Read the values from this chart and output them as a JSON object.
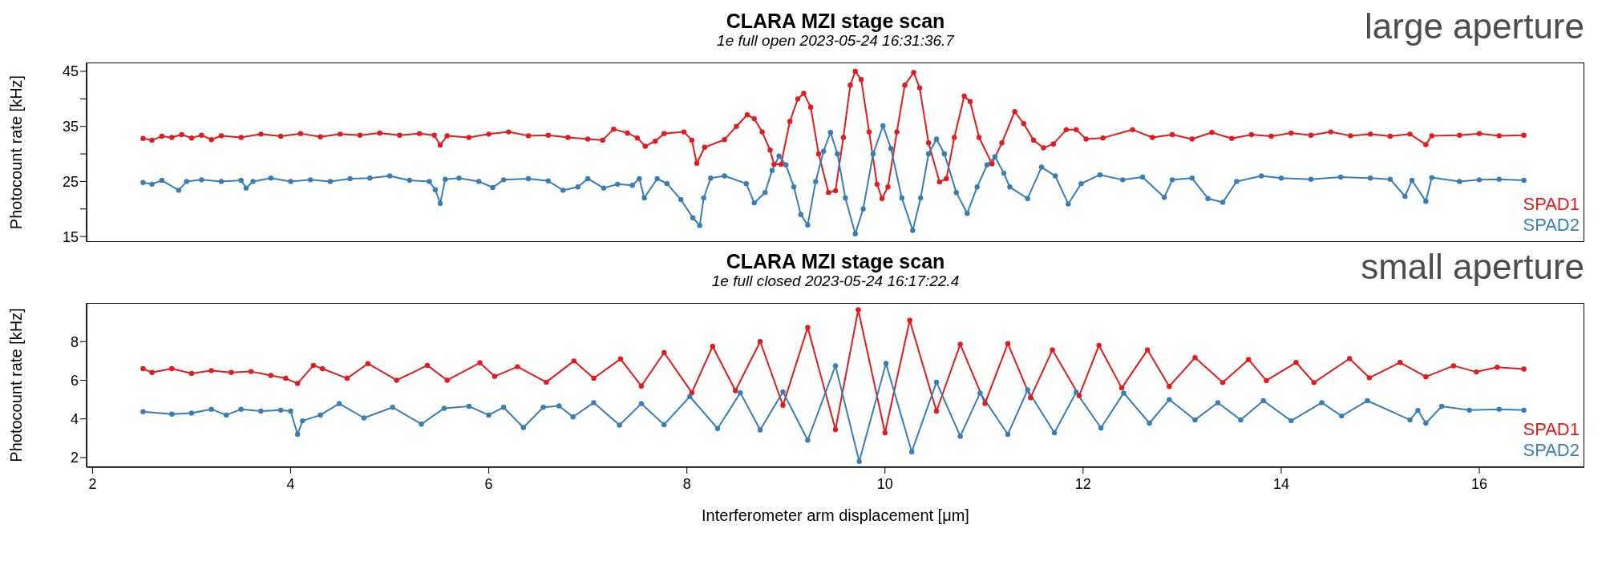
{
  "chart_data": [
    {
      "type": "line",
      "title": "CLARA MZI stage scan",
      "subtitle": "1e full open 2023-05-24 16:31:36.7",
      "ylabel": "Photocount rate [kHz]",
      "annotations": [
        "large aperture"
      ],
      "xlim": [
        1.94,
        17.06
      ],
      "ylim": [
        14,
        46.6
      ],
      "yticks": [
        15,
        {
          "value": 20,
          "label": null
        },
        25,
        {
          "value": 30,
          "label": null
        },
        35,
        {
          "value": 40,
          "label": null
        },
        45
      ],
      "tick_labels": "y",
      "legend": "bottom right",
      "marker": "circle",
      "line_style": "solid",
      "series": [
        {
          "name": "SPAD1",
          "color": "#e41a1c",
          "x": [
            2.51,
            2.6,
            2.7,
            2.8,
            2.9,
            3.0,
            3.1,
            3.2,
            3.3,
            3.5,
            3.7,
            3.9,
            4.1,
            4.3,
            4.5,
            4.7,
            4.9,
            5.1,
            5.3,
            5.45,
            5.51,
            5.58,
            5.8,
            6.0,
            6.2,
            6.4,
            6.6,
            6.8,
            7.0,
            7.15,
            7.26,
            7.4,
            7.5,
            7.58,
            7.68,
            7.77,
            7.97,
            8.05,
            8.1,
            8.18,
            8.38,
            8.5,
            8.61,
            8.68,
            8.76,
            8.84,
            8.88,
            8.95,
            9.04,
            9.12,
            9.18,
            9.25,
            9.33,
            9.43,
            9.5,
            9.58,
            9.65,
            9.7,
            9.76,
            9.84,
            9.92,
            9.97,
            10.03,
            10.12,
            10.2,
            10.29,
            10.35,
            10.44,
            10.55,
            10.62,
            10.7,
            10.8,
            10.86,
            10.95,
            11.08,
            11.18,
            11.31,
            11.4,
            11.5,
            11.6,
            11.7,
            11.83,
            11.93,
            12.03,
            12.2,
            12.5,
            12.7,
            12.9,
            13.1,
            13.3,
            13.5,
            13.7,
            13.9,
            14.1,
            14.3,
            14.5,
            14.7,
            14.9,
            15.1,
            15.3,
            15.46,
            15.52,
            15.8,
            16.0,
            16.2,
            16.45
          ],
          "values": [
            32.8,
            32.5,
            33.2,
            33.0,
            33.5,
            32.9,
            33.4,
            32.6,
            33.3,
            33.0,
            33.6,
            33.2,
            33.7,
            33.1,
            33.6,
            33.4,
            33.8,
            33.4,
            33.7,
            33.4,
            31.6,
            33.3,
            33.0,
            33.6,
            34.0,
            33.3,
            33.4,
            33.0,
            32.7,
            32.5,
            34.5,
            33.8,
            32.9,
            31.4,
            32.3,
            33.7,
            34.0,
            32.5,
            28.3,
            31.2,
            32.6,
            35.0,
            37.1,
            36.4,
            34.0,
            30.7,
            28.1,
            28.1,
            35.9,
            40.0,
            41.0,
            38.5,
            30.0,
            23.0,
            23.3,
            33.0,
            42.5,
            45.0,
            43.5,
            34.0,
            24.5,
            21.9,
            24.0,
            34.0,
            42.5,
            44.8,
            42.0,
            32.0,
            24.9,
            25.5,
            33.0,
            40.5,
            39.5,
            33.0,
            28.2,
            32.0,
            37.7,
            35.5,
            32.5,
            31.1,
            31.8,
            34.4,
            34.4,
            32.7,
            32.9,
            34.4,
            33.0,
            33.5,
            32.7,
            33.9,
            32.8,
            33.5,
            33.2,
            33.8,
            33.4,
            34.0,
            33.3,
            33.6,
            33.2,
            33.6,
            31.7,
            33.3,
            33.4,
            33.7,
            33.3,
            33.4
          ]
        },
        {
          "name": "SPAD2",
          "color": "#377eb8",
          "x": [
            2.51,
            2.6,
            2.7,
            2.87,
            2.95,
            3.1,
            3.3,
            3.5,
            3.55,
            3.62,
            3.8,
            4.0,
            4.2,
            4.4,
            4.6,
            4.8,
            5.0,
            5.2,
            5.4,
            5.46,
            5.51,
            5.56,
            5.7,
            5.9,
            6.04,
            6.15,
            6.4,
            6.6,
            6.75,
            6.9,
            7.0,
            7.16,
            7.3,
            7.45,
            7.52,
            7.57,
            7.7,
            7.8,
            7.94,
            8.06,
            8.13,
            8.17,
            8.24,
            8.38,
            8.6,
            8.68,
            8.79,
            8.86,
            8.93,
            9.0,
            9.08,
            9.15,
            9.22,
            9.3,
            9.38,
            9.45,
            9.52,
            9.6,
            9.7,
            9.78,
            9.88,
            9.98,
            10.06,
            10.17,
            10.28,
            10.36,
            10.44,
            10.52,
            10.6,
            10.72,
            10.83,
            10.93,
            11.03,
            11.11,
            11.2,
            11.26,
            11.44,
            11.58,
            11.72,
            11.85,
            11.98,
            12.17,
            12.4,
            12.6,
            12.82,
            12.9,
            13.1,
            13.26,
            13.41,
            13.55,
            13.8,
            14.0,
            14.3,
            14.6,
            14.9,
            15.1,
            15.25,
            15.32,
            15.46,
            15.52,
            15.8,
            16.0,
            16.2,
            16.45
          ],
          "values": [
            24.8,
            24.5,
            25.2,
            23.4,
            25.0,
            25.3,
            25.0,
            25.2,
            23.8,
            25.0,
            25.6,
            25.0,
            25.3,
            25.0,
            25.5,
            25.6,
            26.0,
            25.2,
            25.0,
            23.5,
            21.0,
            25.4,
            25.6,
            25.0,
            23.9,
            25.3,
            25.5,
            25.1,
            23.4,
            24.0,
            25.5,
            23.8,
            24.5,
            24.3,
            25.5,
            22.0,
            25.5,
            24.6,
            21.7,
            18.4,
            17.0,
            22.0,
            25.6,
            26.0,
            24.6,
            21.1,
            23.0,
            27.0,
            29.6,
            28.0,
            24.0,
            19.0,
            17.1,
            25.0,
            30.5,
            33.9,
            30.0,
            22.0,
            15.5,
            20.0,
            30.0,
            35.1,
            31.0,
            22.0,
            16.1,
            22.0,
            30.0,
            32.7,
            30.0,
            23.0,
            19.2,
            24.0,
            28.0,
            29.5,
            26.5,
            24.0,
            21.9,
            27.6,
            26.0,
            20.9,
            24.6,
            26.2,
            25.3,
            25.8,
            22.1,
            25.3,
            25.6,
            21.9,
            21.2,
            25.0,
            26.0,
            25.6,
            25.4,
            25.8,
            25.6,
            25.4,
            22.3,
            25.2,
            21.4,
            25.7,
            25.0,
            25.3,
            25.4,
            25.2
          ]
        }
      ]
    },
    {
      "type": "line",
      "title": "CLARA MZI stage scan",
      "subtitle": "1e full closed 2023-05-24 16:17:22.4",
      "xlabel": "Interferometer arm displacement [μm]",
      "ylabel": "Photocount rate [kHz]",
      "annotations": [
        "small aperture"
      ],
      "xlim": [
        1.94,
        17.06
      ],
      "xticks": [
        2,
        4,
        6,
        8,
        10,
        12,
        14,
        16
      ],
      "ylim": [
        1.5,
        10
      ],
      "yticks": [
        2,
        4,
        6,
        8
      ],
      "legend": "bottom right",
      "marker": "circle",
      "line_style": "solid",
      "series": [
        {
          "name": "SPAD1",
          "color": "#e41a1c",
          "x": [
            2.51,
            2.6,
            2.8,
            3.0,
            3.2,
            3.4,
            3.6,
            3.8,
            3.95,
            4.07,
            4.23,
            4.32,
            4.57,
            4.78,
            5.07,
            5.38,
            5.58,
            5.91,
            6.06,
            6.29,
            6.58,
            6.86,
            7.06,
            7.33,
            7.54,
            7.77,
            8.05,
            8.26,
            8.49,
            8.74,
            8.97,
            9.22,
            9.5,
            9.73,
            10.0,
            10.25,
            10.52,
            10.76,
            11.01,
            11.24,
            11.47,
            11.69,
            11.96,
            12.16,
            12.39,
            12.65,
            12.87,
            13.13,
            13.41,
            13.67,
            13.85,
            14.15,
            14.33,
            14.69,
            14.89,
            15.2,
            15.46,
            15.74,
            15.97,
            16.18,
            16.45
          ],
          "values": [
            6.6,
            6.4,
            6.6,
            6.35,
            6.5,
            6.4,
            6.45,
            6.25,
            6.1,
            5.83,
            6.77,
            6.6,
            6.1,
            6.86,
            6.0,
            6.77,
            6.0,
            6.9,
            6.2,
            6.7,
            5.9,
            7.0,
            6.1,
            7.1,
            5.7,
            7.43,
            5.36,
            7.75,
            5.46,
            8.0,
            4.7,
            8.73,
            3.45,
            9.65,
            3.28,
            9.1,
            4.4,
            7.86,
            4.8,
            7.9,
            5.1,
            7.57,
            5.2,
            7.8,
            5.6,
            7.57,
            5.68,
            7.17,
            5.88,
            7.07,
            5.98,
            6.92,
            5.88,
            7.12,
            6.13,
            6.92,
            6.18,
            6.75,
            6.43,
            6.67,
            6.58
          ]
        },
        {
          "name": "SPAD2",
          "color": "#377eb8",
          "x": [
            2.51,
            2.8,
            3.0,
            3.2,
            3.35,
            3.5,
            3.7,
            3.9,
            4.0,
            4.07,
            4.12,
            4.3,
            4.49,
            4.74,
            5.03,
            5.32,
            5.55,
            5.8,
            6.0,
            6.15,
            6.35,
            6.55,
            6.71,
            6.85,
            7.06,
            7.32,
            7.54,
            7.77,
            8.03,
            8.31,
            8.54,
            8.74,
            8.97,
            9.22,
            9.5,
            9.74,
            10.01,
            10.27,
            10.52,
            10.76,
            10.96,
            11.24,
            11.44,
            11.71,
            11.93,
            12.18,
            12.41,
            12.67,
            12.87,
            13.13,
            13.36,
            13.59,
            13.82,
            14.1,
            14.41,
            14.61,
            14.87,
            15.3,
            15.38,
            15.46,
            15.62,
            15.9,
            16.2,
            16.45
          ],
          "values": [
            4.37,
            4.25,
            4.3,
            4.5,
            4.2,
            4.5,
            4.4,
            4.45,
            4.4,
            3.2,
            3.9,
            4.2,
            4.79,
            4.05,
            4.6,
            3.73,
            4.55,
            4.65,
            4.2,
            4.6,
            3.55,
            4.6,
            4.67,
            4.1,
            4.84,
            3.68,
            4.79,
            3.7,
            5.16,
            3.5,
            5.35,
            3.43,
            5.4,
            2.9,
            6.75,
            1.8,
            6.87,
            2.3,
            5.9,
            3.1,
            5.34,
            3.2,
            5.5,
            3.28,
            5.38,
            3.53,
            5.34,
            3.78,
            5.0,
            3.95,
            4.84,
            3.95,
            4.94,
            3.9,
            4.84,
            4.15,
            4.94,
            3.95,
            4.44,
            3.78,
            4.65,
            4.45,
            4.5,
            4.45
          ]
        }
      ]
    }
  ]
}
